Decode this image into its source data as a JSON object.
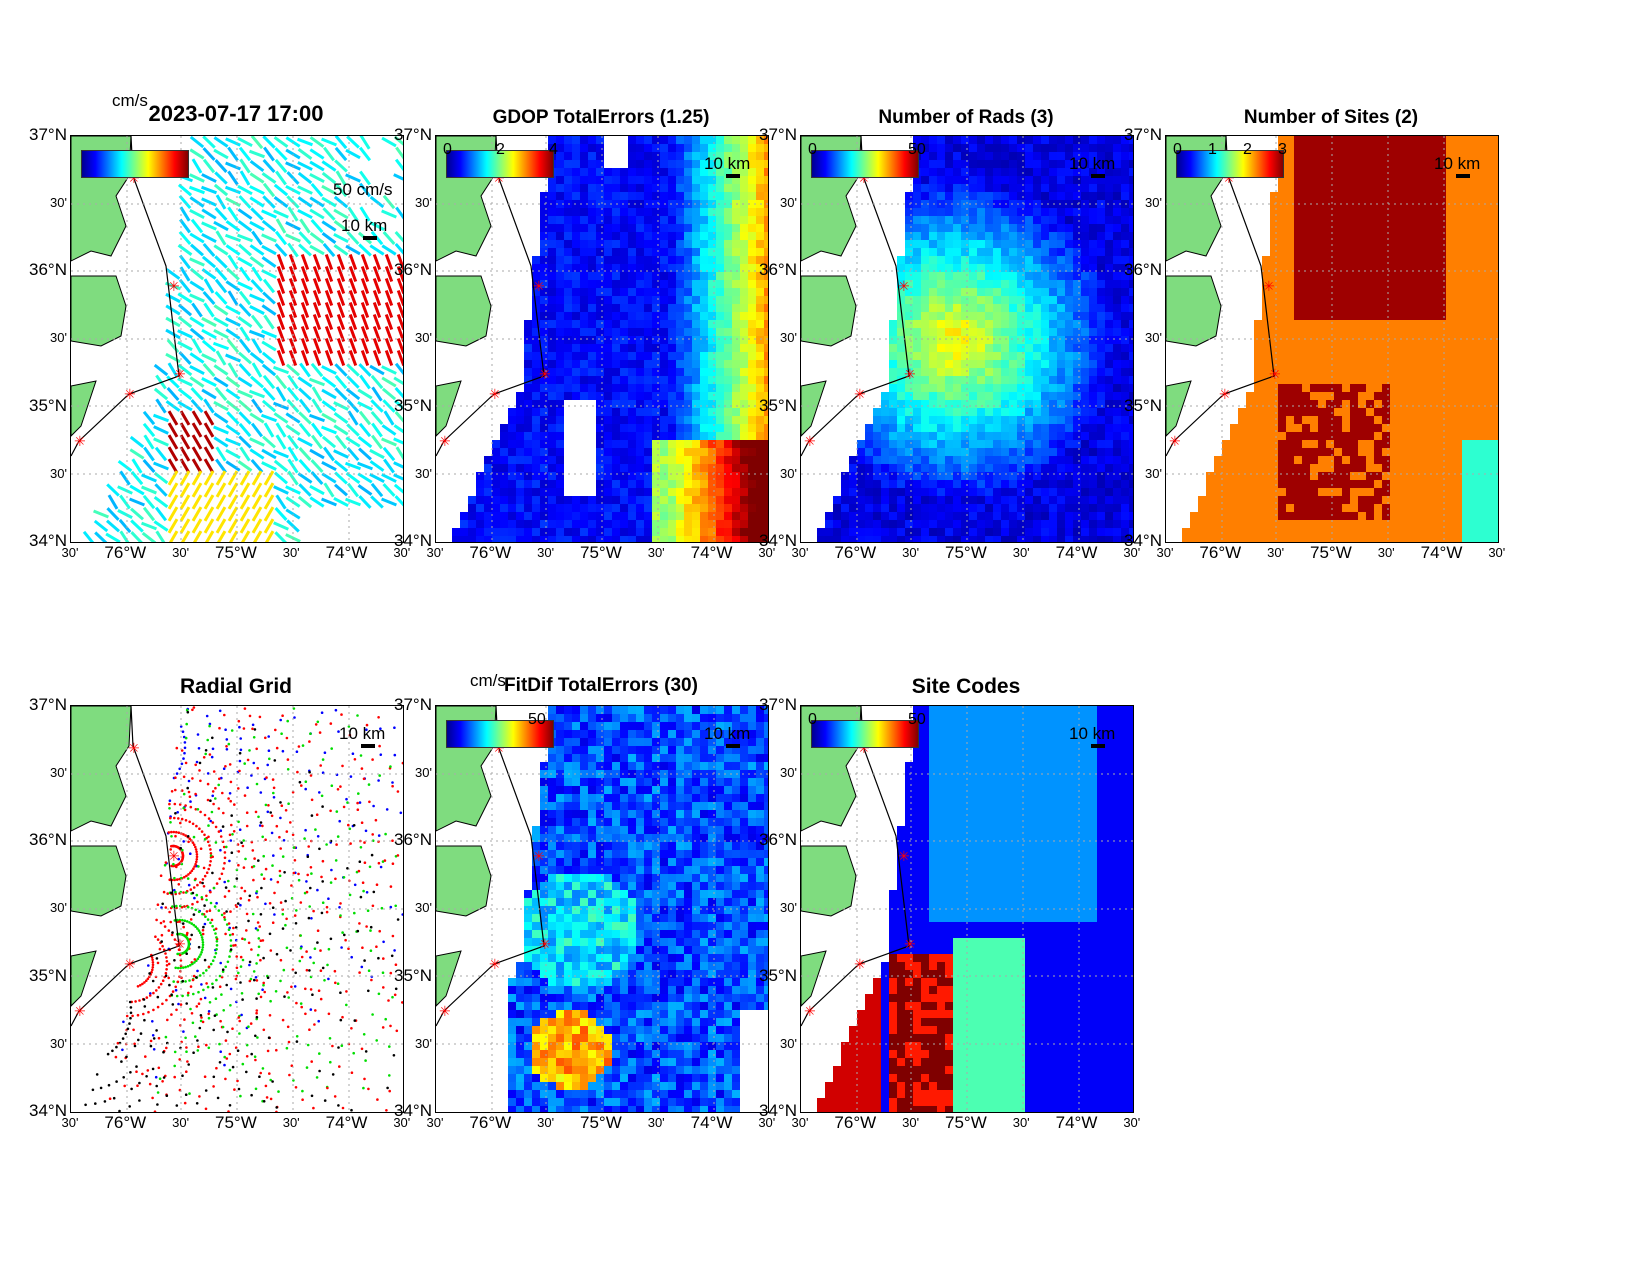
{
  "lat_ticks": [
    "37°N",
    "30'",
    "36°N",
    "30'",
    "35°N",
    "30'",
    "34°N"
  ],
  "lon_ticks": [
    "30'",
    "76°W",
    "30'",
    "75°W",
    "30'",
    "74°W",
    "30'"
  ],
  "scale_label": "10 km",
  "colors": {
    "land": "#7fdc7f",
    "site_marker": "#ff0000"
  },
  "panels": [
    {
      "id": "vectors",
      "title": "2023-07-17 17:00",
      "colorbar_unit": "cm/s",
      "colorbar_ticks": [],
      "vector_scale": "50 cm/s",
      "kind": "vectors"
    },
    {
      "id": "gdop",
      "title": "GDOP TotalErrors (1.25)",
      "colorbar_ticks": [
        "0",
        "2",
        "4"
      ],
      "kind": "gdop"
    },
    {
      "id": "nrads",
      "title": "Number of Rads (3)",
      "colorbar_ticks": [
        "0",
        "50"
      ],
      "kind": "rads"
    },
    {
      "id": "nsites",
      "title": "Number of Sites (2)",
      "colorbar_ticks": [
        "0",
        "1",
        "2",
        "3"
      ],
      "kind": "sites"
    },
    {
      "id": "radialgrid",
      "title": "Radial Grid",
      "colorbar_ticks": [],
      "kind": "grid"
    },
    {
      "id": "fitdif",
      "title": "FitDif TotalErrors (30)",
      "colorbar_unit": "cm/s",
      "colorbar_ticks": [
        "50"
      ],
      "kind": "fitdif"
    },
    {
      "id": "sitecodes",
      "title": "Site Codes",
      "colorbar_ticks": [
        "0",
        "50"
      ],
      "kind": "codes"
    }
  ]
}
